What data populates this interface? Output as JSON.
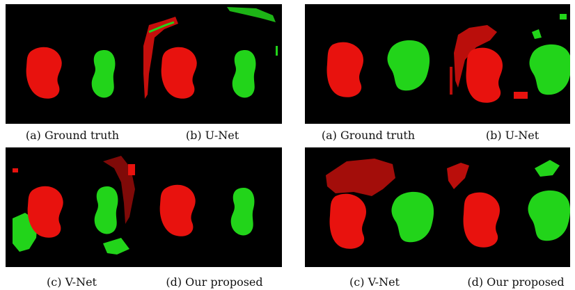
{
  "figure": {
    "panels": [
      {
        "group": "left",
        "row": "top",
        "captions": [
          "(a) Ground truth",
          "(b) U-Net"
        ]
      },
      {
        "group": "right",
        "row": "top",
        "captions": [
          "(a) Ground truth",
          "(b) U-Net"
        ]
      },
      {
        "group": "left",
        "row": "bottom",
        "captions": [
          "(c) V-Net",
          "(d) Our proposed"
        ]
      },
      {
        "group": "right",
        "row": "bottom",
        "captions": [
          "(c) V-Net",
          "(d) Our proposed"
        ]
      }
    ],
    "colors": {
      "background": "#000000",
      "kidney_left": "#e8120e",
      "kidney_right": "#22d41a"
    }
  }
}
